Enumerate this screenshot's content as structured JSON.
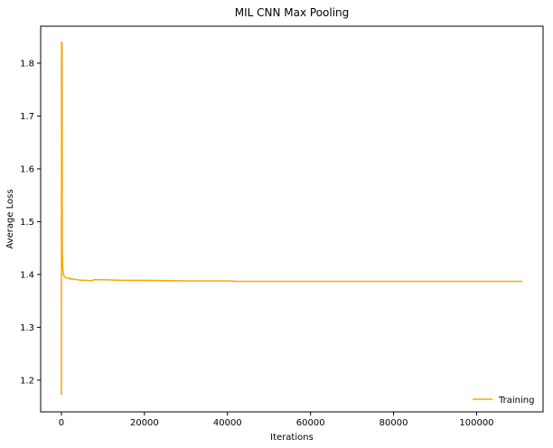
{
  "chart_data": {
    "type": "line",
    "title": "MIL CNN Max Pooling",
    "xlabel": "Iterations",
    "ylabel": "Average Loss",
    "xlim": [
      -5000,
      116000
    ],
    "ylim": [
      1.14,
      1.87
    ],
    "xticks": [
      0,
      20000,
      40000,
      60000,
      80000,
      100000
    ],
    "yticks": [
      1.2,
      1.3,
      1.4,
      1.5,
      1.6,
      1.7,
      1.8
    ],
    "grid": false,
    "legend_position": "bottom-right",
    "series": [
      {
        "name": "Training",
        "color": "#ffa500",
        "x": [
          0,
          30,
          60,
          100,
          130,
          160,
          190,
          220,
          260,
          300,
          350,
          400,
          500,
          700,
          1000,
          1500,
          2000,
          2200,
          2500,
          3000,
          4000,
          5000,
          6000,
          7000,
          7600,
          7700,
          10000,
          15000,
          20000,
          30000,
          40000,
          42000,
          60000,
          80000,
          100000,
          111000
        ],
        "y": [
          1.172,
          1.84,
          1.5,
          1.66,
          1.62,
          1.838,
          1.46,
          1.44,
          1.425,
          1.415,
          1.41,
          1.405,
          1.4,
          1.396,
          1.394,
          1.393,
          1.393,
          1.391,
          1.392,
          1.391,
          1.39,
          1.389,
          1.389,
          1.388,
          1.389,
          1.39,
          1.39,
          1.389,
          1.389,
          1.388,
          1.388,
          1.387,
          1.387,
          1.387,
          1.387,
          1.387
        ]
      }
    ]
  }
}
